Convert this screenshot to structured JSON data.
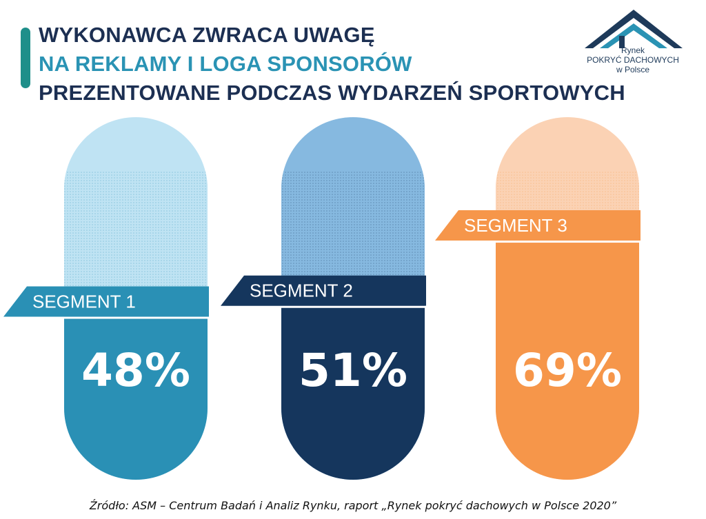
{
  "header": {
    "title_line1": "WYKONAWCA ZWRACA UWAGĘ",
    "title_line2": "NA REKLAMY I LOGA SPONSORÓW",
    "title_line3": "PREZENTOWANE PODCZAS WYDARZEŃ SPORTOWYCH"
  },
  "colors": {
    "title_dark": "#1c2f52",
    "title_accent": "#2a93b4",
    "accent_bar": "#1f8f8a"
  },
  "logo": {
    "line1": "Rynek",
    "line2": "POKRYĆ DACHOWYCH",
    "line3": "w Polsce",
    "icon": "house-roof-icon"
  },
  "chart_data": {
    "type": "bar",
    "categories": [
      "SEGMENT 1",
      "SEGMENT 2",
      "SEGMENT 3"
    ],
    "values": [
      48,
      51,
      69
    ],
    "value_labels": [
      "48%",
      "51%",
      "69%"
    ],
    "unit": "%",
    "ylim": [
      0,
      100
    ],
    "grid": false,
    "colors": [
      {
        "fill": "#2a90b5",
        "light": "#bfe3f3",
        "label_bg": "#2a90b5"
      },
      {
        "fill": "#15365d",
        "light": "#86b9e0",
        "label_bg": "#15365d"
      },
      {
        "fill": "#f6964a",
        "light": "#fbd2b4",
        "label_bg": "#f6964a"
      }
    ]
  },
  "footer": {
    "source": "Źródło: ASM – Centrum Badań i Analiz Rynku, raport „Rynek pokryć dachowych w Polsce 2020”"
  }
}
